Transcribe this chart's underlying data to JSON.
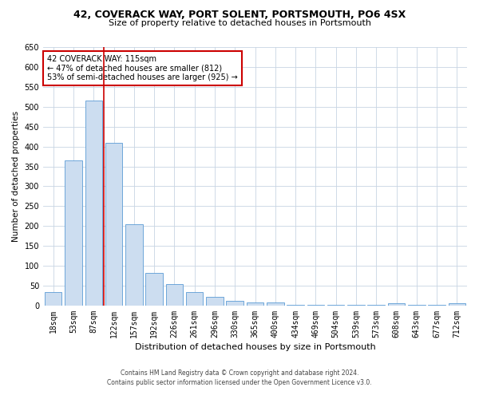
{
  "title1": "42, COVERACK WAY, PORT SOLENT, PORTSMOUTH, PO6 4SX",
  "title2": "Size of property relative to detached houses in Portsmouth",
  "xlabel": "Distribution of detached houses by size in Portsmouth",
  "ylabel": "Number of detached properties",
  "categories": [
    "18sqm",
    "53sqm",
    "87sqm",
    "122sqm",
    "157sqm",
    "192sqm",
    "226sqm",
    "261sqm",
    "296sqm",
    "330sqm",
    "365sqm",
    "400sqm",
    "434sqm",
    "469sqm",
    "504sqm",
    "539sqm",
    "573sqm",
    "608sqm",
    "643sqm",
    "677sqm",
    "712sqm"
  ],
  "values": [
    35,
    365,
    515,
    410,
    205,
    82,
    55,
    33,
    22,
    12,
    8,
    8,
    2,
    2,
    2,
    2,
    2,
    5,
    2,
    2,
    5
  ],
  "bar_color": "#ccddf0",
  "bar_edge_color": "#5b9bd5",
  "vline_x": 2.5,
  "vline_color": "#cc0000",
  "annotation_text": "42 COVERACK WAY: 115sqm\n← 47% of detached houses are smaller (812)\n53% of semi-detached houses are larger (925) →",
  "annotation_box_color": "#ffffff",
  "annotation_box_edge": "#cc0000",
  "ylim": [
    0,
    650
  ],
  "yticks": [
    0,
    50,
    100,
    150,
    200,
    250,
    300,
    350,
    400,
    450,
    500,
    550,
    600,
    650
  ],
  "footer1": "Contains HM Land Registry data © Crown copyright and database right 2024.",
  "footer2": "Contains public sector information licensed under the Open Government Licence v3.0.",
  "bg_color": "#ffffff",
  "grid_color": "#c8d4e3",
  "title1_fontsize": 9,
  "title2_fontsize": 8,
  "xlabel_fontsize": 8,
  "ylabel_fontsize": 7.5,
  "tick_fontsize": 7,
  "annotation_fontsize": 7,
  "footer_fontsize": 5.5
}
